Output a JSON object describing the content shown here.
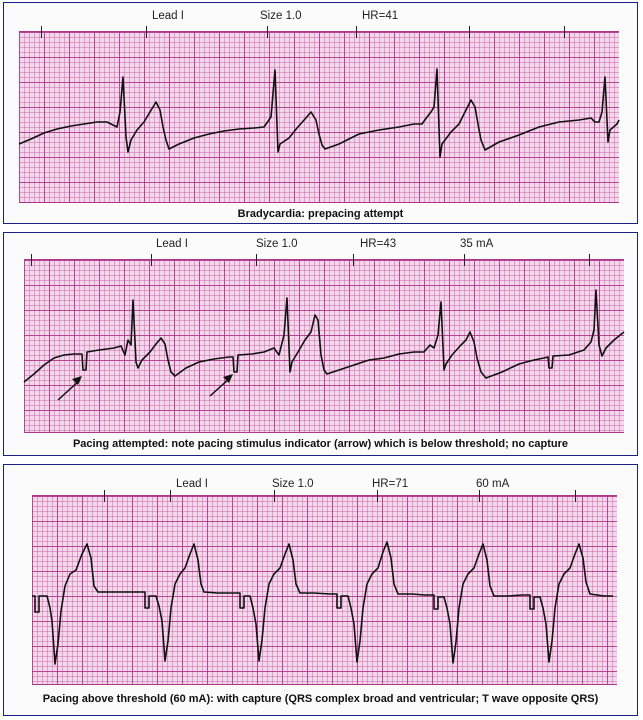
{
  "strips": [
    {
      "header": {
        "lead": "Lead I",
        "size": "Size 1.0",
        "hr": "HR=41"
      },
      "caption": "Bradycardia: prepacing attempt"
    },
    {
      "header": {
        "lead": "Lead I",
        "size": "Size 1.0",
        "hr": "HR=43",
        "current": "35 mA"
      },
      "caption": "Pacing attempted: note pacing stimulus indicator (arrow) which is below threshold; no capture"
    },
    {
      "header": {
        "lead": "Lead I",
        "size": "Size 1.0",
        "hr": "HR=71",
        "current": "60 mA"
      },
      "caption": "Pacing above threshold (60 mA): with capture (QRS complex broad and ventricular; T wave opposite QRS)"
    }
  ],
  "colors": {
    "grid_bg": "#f3d7ea",
    "grid_major": "#b0368a",
    "trace": "#111111",
    "panel_border": "#1c1f8a"
  }
}
